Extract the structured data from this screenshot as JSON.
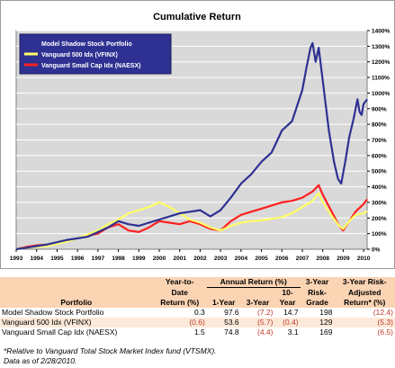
{
  "chart_data": {
    "type": "line",
    "title": "Cumulative Return",
    "x_ticks": [
      "1993",
      "1994",
      "1995",
      "1996",
      "1997",
      "1998",
      "1999",
      "2000",
      "2001",
      "2002",
      "2003",
      "2004",
      "2005",
      "2006",
      "2007",
      "2008",
      "2009",
      "2010"
    ],
    "y_ticks": [
      "0%",
      "100%",
      "200%",
      "300%",
      "400%",
      "500%",
      "600%",
      "700%",
      "800%",
      "900%",
      "1000%",
      "1100%",
      "1200%",
      "1300%",
      "1400%"
    ],
    "ylim": [
      0,
      1400
    ],
    "xlim": [
      1993,
      2010.17
    ],
    "grid": "horizontal",
    "legend_position": "top-left",
    "series": [
      {
        "name": "Model Shadow Stock Portfolio",
        "color": "#2e3192",
        "points": [
          [
            1993,
            0
          ],
          [
            1993.5,
            10
          ],
          [
            1994,
            20
          ],
          [
            1994.5,
            30
          ],
          [
            1995,
            45
          ],
          [
            1995.5,
            60
          ],
          [
            1996,
            70
          ],
          [
            1996.5,
            80
          ],
          [
            1997,
            110
          ],
          [
            1997.5,
            140
          ],
          [
            1998,
            180
          ],
          [
            1998.5,
            160
          ],
          [
            1999,
            150
          ],
          [
            1999.5,
            170
          ],
          [
            2000,
            190
          ],
          [
            2000.5,
            210
          ],
          [
            2001,
            230
          ],
          [
            2001.5,
            240
          ],
          [
            2002,
            250
          ],
          [
            2002.5,
            210
          ],
          [
            2003,
            250
          ],
          [
            2003.5,
            330
          ],
          [
            2004,
            420
          ],
          [
            2004.5,
            480
          ],
          [
            2005,
            560
          ],
          [
            2005.5,
            620
          ],
          [
            2006,
            760
          ],
          [
            2006.5,
            820
          ],
          [
            2007,
            1020
          ],
          [
            2007.2,
            1160
          ],
          [
            2007.4,
            1290
          ],
          [
            2007.5,
            1320
          ],
          [
            2007.65,
            1200
          ],
          [
            2007.8,
            1290
          ],
          [
            2008,
            1080
          ],
          [
            2008.3,
            760
          ],
          [
            2008.55,
            560
          ],
          [
            2008.75,
            450
          ],
          [
            2008.9,
            420
          ],
          [
            2009.1,
            560
          ],
          [
            2009.3,
            720
          ],
          [
            2009.5,
            830
          ],
          [
            2009.7,
            960
          ],
          [
            2009.8,
            880
          ],
          [
            2009.9,
            860
          ],
          [
            2010,
            930
          ],
          [
            2010.17,
            960
          ]
        ]
      },
      {
        "name": "Vanguard 500 Idx (VFINX)",
        "color": "#ffff66",
        "points": [
          [
            1993,
            0
          ],
          [
            1993.5,
            10
          ],
          [
            1994,
            15
          ],
          [
            1994.5,
            20
          ],
          [
            1995,
            35
          ],
          [
            1995.5,
            50
          ],
          [
            1996,
            70
          ],
          [
            1996.5,
            95
          ],
          [
            1997,
            120
          ],
          [
            1997.5,
            160
          ],
          [
            1998,
            190
          ],
          [
            1998.5,
            230
          ],
          [
            1999,
            250
          ],
          [
            1999.5,
            270
          ],
          [
            2000,
            300
          ],
          [
            2000.5,
            270
          ],
          [
            2001,
            230
          ],
          [
            2001.5,
            190
          ],
          [
            2002,
            170
          ],
          [
            2002.5,
            140
          ],
          [
            2003,
            120
          ],
          [
            2003.5,
            150
          ],
          [
            2004,
            170
          ],
          [
            2004.5,
            180
          ],
          [
            2005,
            185
          ],
          [
            2005.5,
            195
          ],
          [
            2006,
            205
          ],
          [
            2006.5,
            230
          ],
          [
            2007,
            270
          ],
          [
            2007.5,
            310
          ],
          [
            2007.8,
            360
          ],
          [
            2008,
            300
          ],
          [
            2008.4,
            220
          ],
          [
            2008.8,
            150
          ],
          [
            2009,
            130
          ],
          [
            2009.3,
            180
          ],
          [
            2009.6,
            220
          ],
          [
            2010,
            230
          ],
          [
            2010.17,
            245
          ]
        ]
      },
      {
        "name": "Vanguard Small Cap Idx (NAESX)",
        "color": "#ff2020",
        "points": [
          [
            1993,
            0
          ],
          [
            1993.5,
            15
          ],
          [
            1994,
            25
          ],
          [
            1994.5,
            30
          ],
          [
            1995,
            40
          ],
          [
            1995.5,
            55
          ],
          [
            1996,
            70
          ],
          [
            1996.5,
            85
          ],
          [
            1997,
            100
          ],
          [
            1997.5,
            140
          ],
          [
            1998,
            160
          ],
          [
            1998.5,
            120
          ],
          [
            1999,
            110
          ],
          [
            1999.5,
            140
          ],
          [
            2000,
            180
          ],
          [
            2000.5,
            170
          ],
          [
            2001,
            160
          ],
          [
            2001.5,
            180
          ],
          [
            2002,
            160
          ],
          [
            2002.5,
            130
          ],
          [
            2003,
            120
          ],
          [
            2003.5,
            180
          ],
          [
            2004,
            220
          ],
          [
            2004.5,
            240
          ],
          [
            2005,
            260
          ],
          [
            2005.5,
            280
          ],
          [
            2006,
            300
          ],
          [
            2006.5,
            310
          ],
          [
            2007,
            330
          ],
          [
            2007.5,
            370
          ],
          [
            2007.8,
            410
          ],
          [
            2008,
            350
          ],
          [
            2008.4,
            250
          ],
          [
            2008.8,
            150
          ],
          [
            2009,
            120
          ],
          [
            2009.3,
            180
          ],
          [
            2009.6,
            240
          ],
          [
            2010,
            290
          ],
          [
            2010.17,
            320
          ]
        ]
      }
    ]
  },
  "table": {
    "col_headers": {
      "portfolio": "Portfolio",
      "ytd": "Year-to-Date Return (%)",
      "annual_group": "Annual Return (%)",
      "one_year": "1-Year",
      "three_year": "3-Year",
      "ten_year": "10-Year",
      "risk_grade": "3-Year Risk-Grade",
      "risk_adjusted": "3-Year Risk-Adjusted Return* (%)"
    },
    "rows": [
      {
        "name": "Model Shadow Stock Portfolio",
        "ytd": "0.3",
        "one_year": "97.6",
        "three_year": "(7.2)",
        "ten_year": "14.7",
        "risk_grade": "198",
        "risk_adjusted": "(12.4)"
      },
      {
        "name": "Vanguard 500 Idx (VFINX)",
        "ytd": "(0.6)",
        "one_year": "53.6",
        "three_year": "(5.7)",
        "ten_year": "(0.4)",
        "risk_grade": "129",
        "risk_adjusted": "(5.3)"
      },
      {
        "name": "Vanguard Small Cap Idx (NAESX)",
        "ytd": "1.5",
        "one_year": "74.8",
        "three_year": "(4.4)",
        "ten_year": "3.1",
        "risk_grade": "169",
        "risk_adjusted": "(6.5)"
      }
    ]
  },
  "footnotes": {
    "line1": "*Relative to Vanguard Total Stock Market Index fund (VTSMX).",
    "line2": "Data as of 2/28/2010."
  }
}
